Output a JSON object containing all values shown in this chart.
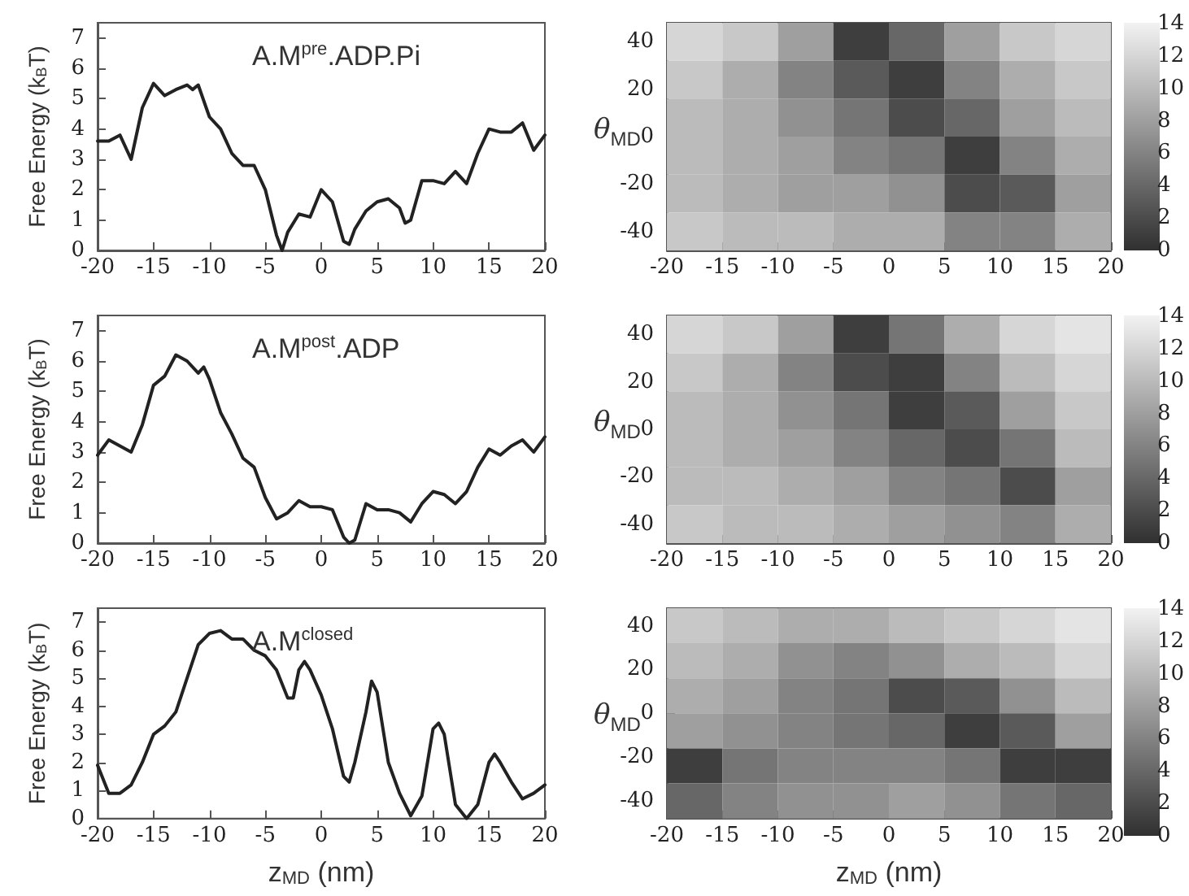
{
  "chart_data": [
    {
      "type": "line",
      "annotations": [
        "A.M$^{pre}$.ADP.Pi"
      ],
      "ylabel": "Free Energy (k$_{B}$T)",
      "color": "#222222",
      "x": [
        -20,
        -19,
        -18,
        -17,
        -16,
        -15,
        -14,
        -13,
        -12,
        -11.5,
        -11,
        -10,
        -9,
        -8,
        -7,
        -6,
        -5,
        -4,
        -3.5,
        -3,
        -2,
        -1,
        0,
        1,
        2,
        2.5,
        3,
        4,
        5,
        6,
        7,
        7.5,
        8,
        9,
        10,
        11,
        12,
        13,
        14,
        15,
        16,
        17,
        18,
        19,
        20
      ],
      "values": [
        3.6,
        3.6,
        3.8,
        3.0,
        4.7,
        5.5,
        5.1,
        5.3,
        5.45,
        5.3,
        5.45,
        4.4,
        4.0,
        3.2,
        2.8,
        2.8,
        2.0,
        0.5,
        0.0,
        0.6,
        1.2,
        1.1,
        2.0,
        1.6,
        0.3,
        0.2,
        0.7,
        1.3,
        1.6,
        1.7,
        1.4,
        0.9,
        1.0,
        2.3,
        2.3,
        2.2,
        2.6,
        2.2,
        3.2,
        4.0,
        3.9,
        3.9,
        4.2,
        3.3,
        3.8
      ],
      "xlim": [
        -20,
        20
      ],
      "xticks": [
        -20,
        -15,
        -10,
        -5,
        0,
        5,
        10,
        15,
        20
      ],
      "ylim": [
        0,
        7.5
      ],
      "yticks": [
        0,
        1,
        2,
        3,
        4,
        5,
        6,
        7
      ]
    },
    {
      "type": "heatmap",
      "ylabel": "θ$_{MD}$",
      "x": [
        -17.5,
        -12.5,
        -7.5,
        -2.5,
        2.5,
        7.5,
        12.5,
        17.5
      ],
      "cells": [
        [
          12,
          11,
          8,
          1,
          4,
          8,
          11,
          12
        ],
        [
          11,
          9,
          6,
          3,
          1,
          6,
          9,
          11
        ],
        [
          10,
          9,
          7,
          5,
          2,
          4,
          8,
          10
        ],
        [
          10,
          9,
          8,
          6,
          5,
          1,
          6,
          9
        ],
        [
          10,
          9,
          8,
          8,
          7,
          2,
          3,
          8
        ],
        [
          11,
          10,
          10,
          9,
          9,
          6,
          6,
          9
        ]
      ],
      "clim": [
        0,
        14
      ],
      "cticks": [
        0,
        2,
        4,
        6,
        8,
        10,
        12,
        14
      ],
      "xlim": [
        -20,
        20
      ],
      "xticks": [
        -20,
        -15,
        -10,
        -5,
        0,
        5,
        10,
        15,
        20
      ],
      "ylim": [
        -48,
        48
      ],
      "yticks": [
        -40,
        -20,
        0,
        20,
        40
      ]
    },
    {
      "type": "line",
      "annotations": [
        "A.M$^{post}$.ADP"
      ],
      "ylabel": "Free Energy (k$_{B}$T)",
      "color": "#222222",
      "x": [
        -20,
        -19,
        -18,
        -17,
        -16,
        -15,
        -14,
        -13,
        -12,
        -11,
        -10.5,
        -10,
        -9,
        -8,
        -7,
        -6,
        -5,
        -4,
        -3,
        -2,
        -1,
        0,
        1,
        2,
        2.5,
        3,
        4,
        5,
        6,
        7,
        8,
        9,
        10,
        11,
        12,
        13,
        14,
        15,
        16,
        17,
        18,
        19,
        20
      ],
      "values": [
        2.9,
        3.4,
        3.2,
        3.0,
        3.9,
        5.2,
        5.5,
        6.2,
        6.0,
        5.6,
        5.8,
        5.4,
        4.3,
        3.6,
        2.8,
        2.5,
        1.5,
        0.8,
        1.0,
        1.4,
        1.2,
        1.2,
        1.1,
        0.2,
        0,
        0.1,
        1.3,
        1.1,
        1.1,
        1.0,
        0.7,
        1.3,
        1.7,
        1.6,
        1.3,
        1.7,
        2.5,
        3.1,
        2.9,
        3.2,
        3.4,
        3.0,
        3.5
      ],
      "xlim": [
        -20,
        20
      ],
      "xticks": [
        -20,
        -15,
        -10,
        -5,
        0,
        5,
        10,
        15,
        20
      ],
      "ylim": [
        0,
        7.5
      ],
      "yticks": [
        0,
        1,
        2,
        3,
        4,
        5,
        6,
        7
      ]
    },
    {
      "type": "heatmap",
      "ylabel": "θ$_{MD}$",
      "x": [
        -17.5,
        -12.5,
        -7.5,
        -2.5,
        2.5,
        7.5,
        12.5,
        17.5
      ],
      "cells": [
        [
          12,
          11,
          8,
          1,
          5,
          9,
          12,
          13
        ],
        [
          11,
          9,
          6,
          2,
          1,
          6,
          10,
          12
        ],
        [
          10,
          9,
          7,
          5,
          1,
          3,
          8,
          11
        ],
        [
          10,
          9,
          8,
          6,
          4,
          2,
          5,
          10
        ],
        [
          10,
          10,
          9,
          8,
          6,
          5,
          2,
          8
        ],
        [
          11,
          10,
          10,
          9,
          8,
          7,
          6,
          9
        ]
      ],
      "clim": [
        0,
        14
      ],
      "cticks": [
        0,
        2,
        4,
        6,
        8,
        10,
        12,
        14
      ],
      "xlim": [
        -20,
        20
      ],
      "xticks": [
        -20,
        -15,
        -10,
        -5,
        0,
        5,
        10,
        15,
        20
      ],
      "ylim": [
        -48,
        48
      ],
      "yticks": [
        -40,
        -20,
        0,
        20,
        40
      ]
    },
    {
      "type": "line",
      "annotations": [
        "A.M$^{closed}$"
      ],
      "ylabel": "Free Energy (k$_{B}$T)",
      "xlabel": "z$_{MD}$ (nm)",
      "color": "#222222",
      "x": [
        -20,
        -19,
        -18,
        -17,
        -16,
        -15,
        -14,
        -13,
        -12,
        -11,
        -10,
        -9,
        -8,
        -7,
        -6,
        -5,
        -4,
        -3,
        -2.5,
        -2,
        -1.5,
        -1,
        0,
        1,
        2,
        2.5,
        3,
        4,
        4.5,
        5,
        6,
        7,
        8,
        9,
        10,
        10.5,
        11,
        12,
        13,
        14,
        15,
        15.5,
        16,
        17,
        18,
        19,
        20
      ],
      "values": [
        1.9,
        0.9,
        0.9,
        1.2,
        2.0,
        3.0,
        3.3,
        3.8,
        5.0,
        6.2,
        6.6,
        6.7,
        6.4,
        6.4,
        6.0,
        5.8,
        5.3,
        4.3,
        4.3,
        5.3,
        5.6,
        5.3,
        4.4,
        3.2,
        1.5,
        1.3,
        2.0,
        3.8,
        4.9,
        4.5,
        2.0,
        0.9,
        0.1,
        0.8,
        3.2,
        3.4,
        3.0,
        0.5,
        0.0,
        0.5,
        2.0,
        2.3,
        2.0,
        1.3,
        0.7,
        0.9,
        1.2
      ],
      "xlim": [
        -20,
        20
      ],
      "xticks": [
        -20,
        -15,
        -10,
        -5,
        0,
        5,
        10,
        15,
        20
      ],
      "ylim": [
        0,
        7.5
      ],
      "yticks": [
        0,
        1,
        2,
        3,
        4,
        5,
        6,
        7
      ]
    },
    {
      "type": "heatmap",
      "ylabel": "θ$_{MD}$",
      "xlabel": "z$_{MD}$ (nm)",
      "x": [
        -17.5,
        -12.5,
        -7.5,
        -2.5,
        2.5,
        7.5,
        12.5,
        17.5
      ],
      "cells": [
        [
          11,
          10,
          9,
          9,
          10,
          11,
          12,
          13
        ],
        [
          10,
          9,
          7,
          6,
          7,
          9,
          10,
          12
        ],
        [
          9,
          8,
          6,
          5,
          2,
          3,
          7,
          10
        ],
        [
          8,
          7,
          6,
          5,
          4,
          1,
          3,
          8
        ],
        [
          1,
          5,
          6,
          6,
          6,
          5,
          1,
          1
        ],
        [
          4,
          6,
          7,
          7,
          8,
          7,
          5,
          4
        ]
      ],
      "clim": [
        0,
        14
      ],
      "cticks": [
        0,
        2,
        4,
        6,
        8,
        10,
        12,
        14
      ],
      "xlim": [
        -20,
        20
      ],
      "xticks": [
        -20,
        -15,
        -10,
        -5,
        0,
        5,
        10,
        15,
        20
      ],
      "ylim": [
        -48,
        48
      ],
      "yticks": [
        -40,
        -20,
        0,
        20,
        40
      ]
    }
  ]
}
